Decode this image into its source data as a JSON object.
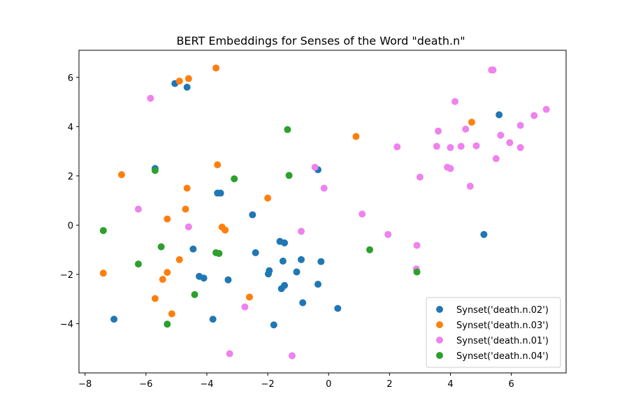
{
  "chart_data": {
    "type": "scatter",
    "title": "BERT Embeddings for Senses of the Word \"death.n\"",
    "xlabel": "",
    "ylabel": "",
    "xlim": [
      -8.2,
      7.8
    ],
    "ylim": [
      -6.0,
      7.1
    ],
    "x_ticks": [
      -8,
      -6,
      -4,
      -2,
      0,
      2,
      4,
      6
    ],
    "y_ticks": [
      -4,
      -2,
      0,
      2,
      4,
      6
    ],
    "grid": false,
    "legend_position": "bottom-right",
    "series": [
      {
        "name": "Synset('death.n.02')",
        "color": "#1f77b4",
        "points": [
          [
            -5.05,
            5.75
          ],
          [
            -4.65,
            5.6
          ],
          [
            -5.7,
            2.3
          ],
          [
            -0.35,
            2.25
          ],
          [
            -3.65,
            1.3
          ],
          [
            -3.55,
            1.3
          ],
          [
            -2.5,
            0.42
          ],
          [
            -4.45,
            -0.97
          ],
          [
            -2.4,
            -1.12
          ],
          [
            -1.6,
            -0.66
          ],
          [
            -1.45,
            -0.72
          ],
          [
            -0.9,
            -1.4
          ],
          [
            -0.25,
            -1.48
          ],
          [
            -1.5,
            -1.46
          ],
          [
            -4.25,
            -2.08
          ],
          [
            -4.1,
            -2.15
          ],
          [
            -3.3,
            -2.22
          ],
          [
            -1.95,
            -1.85
          ],
          [
            -1.98,
            -1.98
          ],
          [
            -1.05,
            -1.9
          ],
          [
            -1.45,
            -2.45
          ],
          [
            -1.55,
            -2.58
          ],
          [
            -0.35,
            -2.4
          ],
          [
            -0.85,
            -3.15
          ],
          [
            0.3,
            -3.38
          ],
          [
            -7.05,
            -3.82
          ],
          [
            -3.8,
            -3.82
          ],
          [
            -1.8,
            -4.05
          ],
          [
            5.6,
            4.48
          ],
          [
            5.1,
            -0.38
          ]
        ]
      },
      {
        "name": "Synset('death.n.03')",
        "color": "#ff7f0e",
        "points": [
          [
            -4.9,
            5.85
          ],
          [
            -4.6,
            5.95
          ],
          [
            -3.7,
            6.38
          ],
          [
            -6.8,
            2.05
          ],
          [
            -3.65,
            2.45
          ],
          [
            -4.65,
            1.5
          ],
          [
            -2.0,
            1.1
          ],
          [
            -4.7,
            0.65
          ],
          [
            -5.3,
            0.25
          ],
          [
            -3.5,
            -0.08
          ],
          [
            -3.4,
            -0.2
          ],
          [
            -4.9,
            -1.4
          ],
          [
            -7.4,
            -1.95
          ],
          [
            -5.3,
            -1.92
          ],
          [
            -5.45,
            -2.2
          ],
          [
            -5.7,
            -2.98
          ],
          [
            -5.15,
            -3.6
          ],
          [
            -2.6,
            -2.92
          ],
          [
            0.9,
            3.6
          ],
          [
            4.7,
            4.18
          ]
        ]
      },
      {
        "name": "Synset('death.n.01')",
        "color": "#ee82ee",
        "points": [
          [
            -5.85,
            5.15
          ],
          [
            -6.25,
            0.65
          ],
          [
            -4.6,
            -0.07
          ],
          [
            -0.45,
            2.35
          ],
          [
            -0.15,
            1.5
          ],
          [
            1.1,
            0.45
          ],
          [
            -0.9,
            -0.25
          ],
          [
            1.95,
            -0.38
          ],
          [
            2.9,
            -0.82
          ],
          [
            2.88,
            -1.78
          ],
          [
            -2.75,
            -3.32
          ],
          [
            -3.25,
            -5.22
          ],
          [
            -1.2,
            -5.3
          ],
          [
            2.25,
            3.18
          ],
          [
            3.0,
            1.95
          ],
          [
            3.55,
            3.2
          ],
          [
            3.6,
            3.82
          ],
          [
            3.9,
            2.35
          ],
          [
            4.0,
            2.3
          ],
          [
            4.0,
            3.15
          ],
          [
            4.15,
            5.02
          ],
          [
            4.35,
            3.2
          ],
          [
            4.5,
            3.9
          ],
          [
            4.65,
            1.58
          ],
          [
            4.85,
            3.22
          ],
          [
            5.35,
            6.3
          ],
          [
            5.4,
            6.3
          ],
          [
            5.5,
            2.7
          ],
          [
            5.65,
            3.65
          ],
          [
            5.95,
            3.35
          ],
          [
            6.3,
            3.15
          ],
          [
            6.3,
            4.05
          ],
          [
            6.75,
            4.45
          ],
          [
            7.15,
            4.7
          ]
        ]
      },
      {
        "name": "Synset('death.n.04')",
        "color": "#2ca02c",
        "points": [
          [
            -5.7,
            2.22
          ],
          [
            -3.1,
            1.88
          ],
          [
            -1.3,
            2.02
          ],
          [
            -1.35,
            3.88
          ],
          [
            -7.4,
            -0.22
          ],
          [
            -5.5,
            -0.88
          ],
          [
            -3.7,
            -1.12
          ],
          [
            -3.6,
            -1.15
          ],
          [
            -6.25,
            -1.58
          ],
          [
            -4.4,
            -2.82
          ],
          [
            -5.3,
            -4.02
          ],
          [
            1.35,
            -1.0
          ],
          [
            2.9,
            -1.9
          ]
        ]
      }
    ]
  }
}
